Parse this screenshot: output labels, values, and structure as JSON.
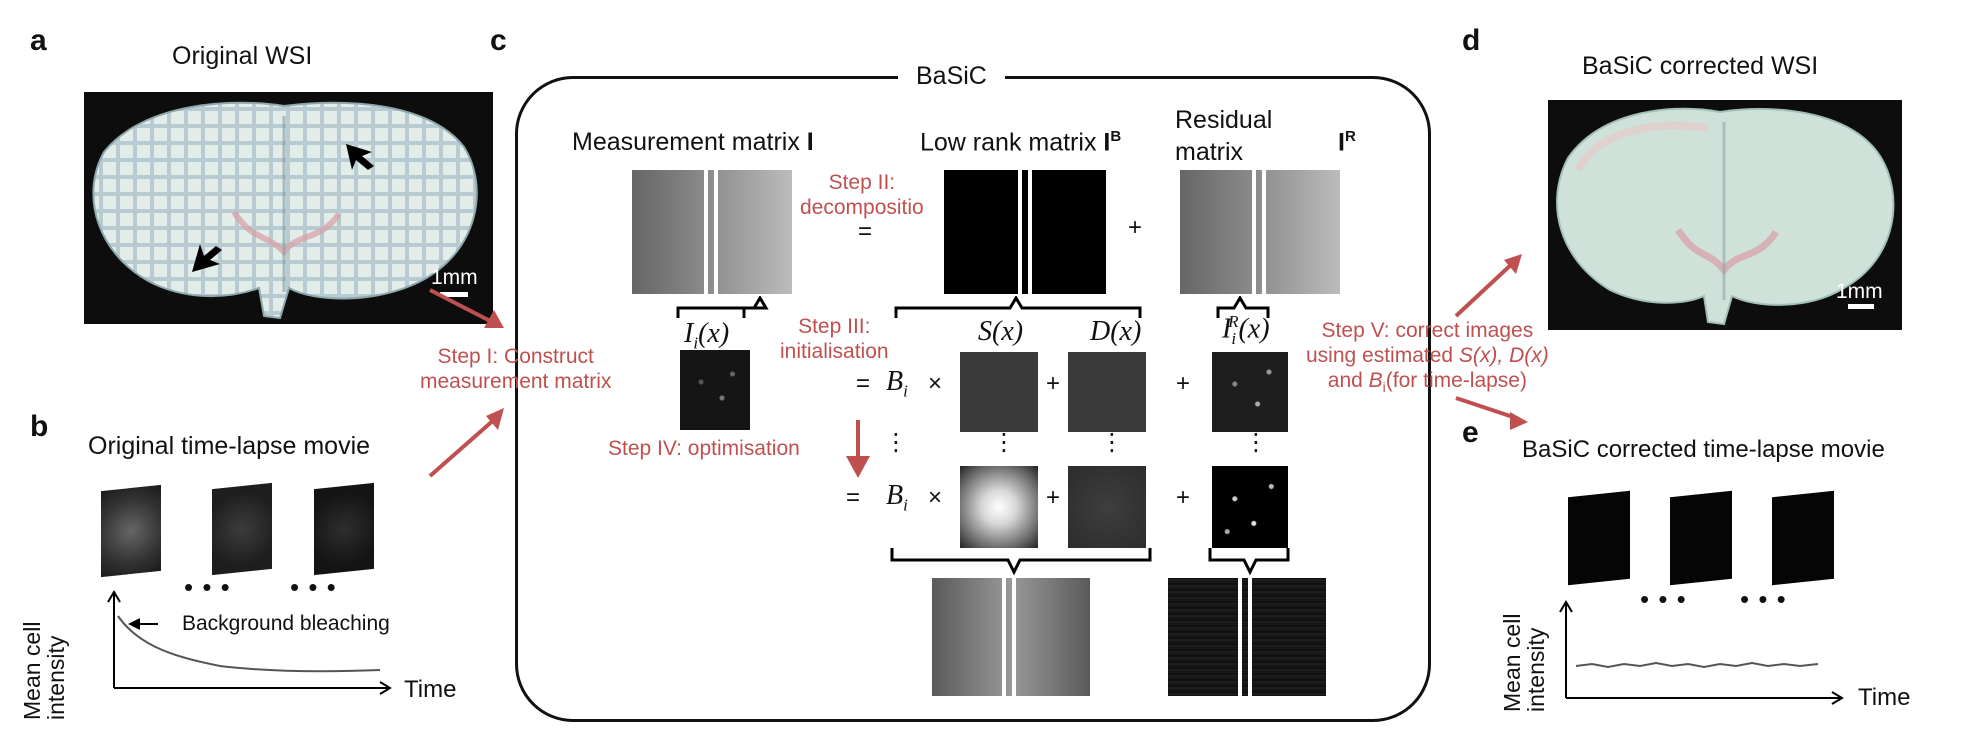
{
  "panels": {
    "a": {
      "letter": "a",
      "title": "Original WSI",
      "scale": "1mm"
    },
    "b": {
      "letter": "b",
      "title": "Original time-lapse movie",
      "annotation": "Background bleaching",
      "y_label_1": "Mean cell",
      "y_label_2": "intensity",
      "x_label": "Time"
    },
    "c": {
      "letter": "c",
      "title": "BaSiC",
      "measurement_label": "Measurement matrix ",
      "measurement_symbol": "I",
      "lowrank_label": "Low rank matrix ",
      "lowrank_symbol": "I",
      "lowrank_sup": "B",
      "residual_label_1": "Residual",
      "residual_label_2": "matrix",
      "residual_symbol": "I",
      "residual_sup": "R",
      "ii_x": "I",
      "ii_sub": "i",
      "ii_arg": "(x)",
      "s_x": "S(x)",
      "d_x": "D(x)",
      "iir_base": "I",
      "iir_sub": "i",
      "iir_sup": "R",
      "iir_arg": "(x)",
      "bi": "B",
      "bi_sub": "i",
      "eq": "=",
      "plus": "+",
      "times": "×",
      "vdots": "⋮"
    },
    "d": {
      "letter": "d",
      "title": "BaSiC corrected WSI",
      "scale": "1mm"
    },
    "e": {
      "letter": "e",
      "title": "BaSiC corrected time-lapse movie",
      "y_label_1": "Mean cell",
      "y_label_2": "intensity",
      "x_label": "Time"
    }
  },
  "steps": {
    "step1_line1": "Step I: Construct",
    "step1_line2": "measurement matrix",
    "step2_line1": "Step II:",
    "step2_line2": "decompositio",
    "step3_line1": "Step III:",
    "step3_line2": "initialisation",
    "step4": "Step IV: optimisation",
    "step5_line1": "Step V: correct images",
    "step5_line2a": "using estimated ",
    "step5_line2b": "S(x), D(x)",
    "step5_line3a": "and ",
    "step5_line3b": "B",
    "step5_line3c": "i",
    "step5_line3d": "(for time-lapse)"
  },
  "dots": "• • •",
  "colors": {
    "accent_red": "#c05050",
    "frame": "#111111"
  }
}
